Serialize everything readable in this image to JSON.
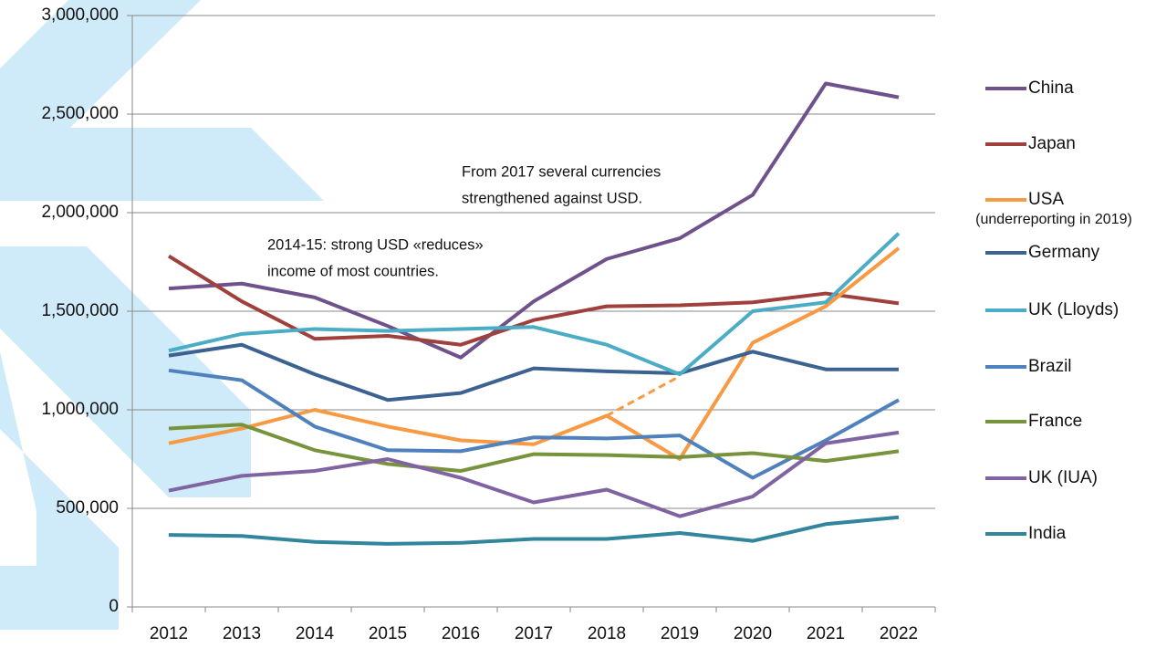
{
  "chart_data": {
    "type": "line",
    "categories": [
      "2012",
      "2013",
      "2014",
      "2015",
      "2016",
      "2017",
      "2018",
      "2019",
      "2020",
      "2021",
      "2022"
    ],
    "ylim": [
      0,
      3000000
    ],
    "yticks": [
      0,
      {
        "value": 500000,
        "label": "500,000"
      },
      {
        "value": 1000000,
        "label": "1,000,000"
      },
      {
        "value": 1500000,
        "label": "1,500,000"
      },
      {
        "value": 2000000,
        "label": "2,000,000"
      },
      {
        "value": 2500000,
        "label": "2,500,000"
      },
      {
        "value": 3000000,
        "label": "3,000,000"
      }
    ],
    "grid": true,
    "legend": "right",
    "series": [
      {
        "name": "China",
        "color": "#6f528c",
        "values": [
          1615000,
          1640000,
          1570000,
          1425000,
          1265000,
          1550000,
          1765000,
          1870000,
          2090000,
          2655000,
          2585000
        ]
      },
      {
        "name": "Japan",
        "color": "#a0403c",
        "values": [
          1780000,
          1550000,
          1360000,
          1375000,
          1330000,
          1455000,
          1525000,
          1530000,
          1545000,
          1590000,
          1540000
        ]
      },
      {
        "name": "USA",
        "note": "(underreporting in 2019)",
        "color": "#f79a43",
        "values": [
          830000,
          905000,
          1000000,
          915000,
          845000,
          825000,
          970000,
          750000,
          1340000,
          1525000,
          1820000
        ],
        "dashed_values": [
          null,
          null,
          null,
          null,
          null,
          null,
          970000,
          1170000,
          null,
          null,
          null
        ]
      },
      {
        "name": "Germany",
        "color": "#3b6291",
        "values": [
          1275000,
          1330000,
          1180000,
          1050000,
          1085000,
          1210000,
          1195000,
          1185000,
          1295000,
          1205000,
          1205000
        ]
      },
      {
        "name": "UK (Lloyds)",
        "color": "#4bacc6",
        "values": [
          1300000,
          1385000,
          1410000,
          1400000,
          1410000,
          1420000,
          1330000,
          1180000,
          1500000,
          1545000,
          1895000
        ]
      },
      {
        "name": "Brazil",
        "color": "#4f81bd",
        "values": [
          1200000,
          1150000,
          915000,
          795000,
          790000,
          860000,
          855000,
          870000,
          655000,
          845000,
          1050000
        ]
      },
      {
        "name": "France",
        "color": "#77933c",
        "values": [
          905000,
          925000,
          795000,
          725000,
          690000,
          775000,
          770000,
          760000,
          780000,
          740000,
          790000
        ]
      },
      {
        "name": "UK (IUA)",
        "color": "#8064a2",
        "values": [
          590000,
          665000,
          690000,
          750000,
          655000,
          530000,
          595000,
          460000,
          560000,
          830000,
          885000
        ]
      },
      {
        "name": "India",
        "color": "#31859c",
        "values": [
          365000,
          360000,
          330000,
          320000,
          325000,
          345000,
          345000,
          375000,
          335000,
          420000,
          455000
        ]
      }
    ],
    "annotations": [
      {
        "lines": [
          "2014-15: strong USD «reduces»",
          "income of most countries."
        ]
      },
      {
        "lines": [
          "From 2017 several currencies",
          "strengthened against USD."
        ]
      }
    ]
  }
}
